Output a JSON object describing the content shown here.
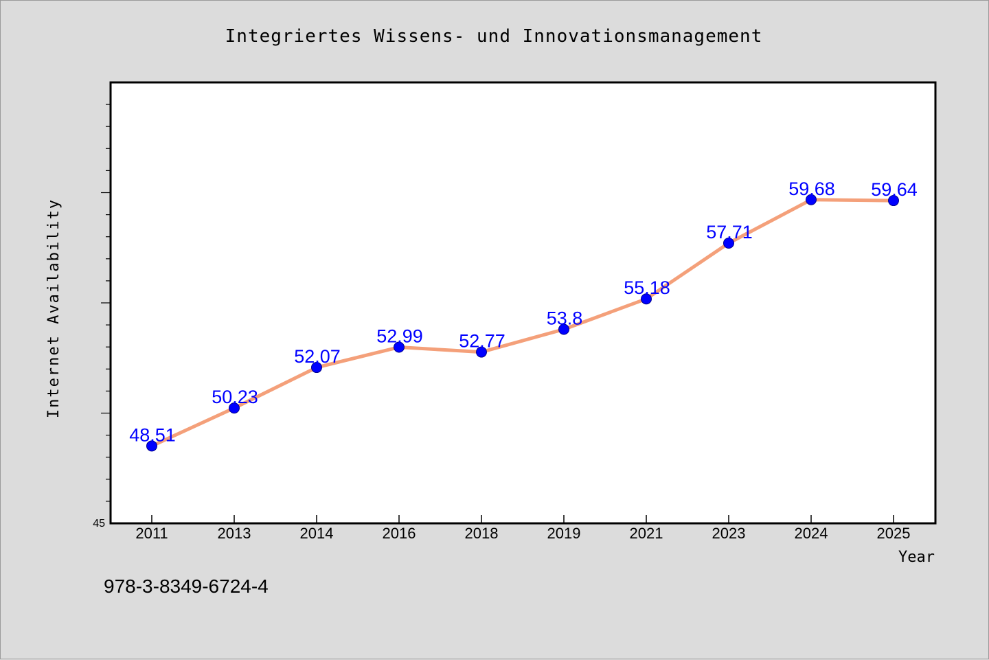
{
  "chart_data": {
    "type": "line",
    "title": "Integriertes Wissens- und Innovationsmanagement",
    "xlabel": "Year",
    "ylabel": "Internet Availability",
    "categories": [
      "2011",
      "2013",
      "2014",
      "2016",
      "2018",
      "2019",
      "2021",
      "2023",
      "2024",
      "2025"
    ],
    "values": [
      48.51,
      50.23,
      52.07,
      52.99,
      52.77,
      53.8,
      55.18,
      57.71,
      59.68,
      59.64
    ],
    "data_labels": [
      "48.51",
      "50.23",
      "52.07",
      "52.99",
      "52.77",
      "53.8",
      "55.18",
      "57.71",
      "59.68",
      "59.64"
    ],
    "ylim": [
      45,
      65
    ],
    "y_tick_labels": [
      "45"
    ],
    "grid": false,
    "legend": "none",
    "colors": {
      "line": "#f4a07a",
      "marker": "#0000ff",
      "marker_edge": "#00008b",
      "data_label": "#0000ff",
      "background": "#dcdcdc",
      "plot_background": "#ffffff"
    }
  },
  "footer_note": "978-3-8349-6724-4"
}
